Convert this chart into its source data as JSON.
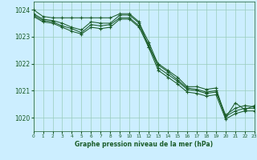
{
  "background_color": "#cceeff",
  "grid_color": "#99ccbb",
  "line_color": "#1a5c28",
  "xlabel": "Graphe pression niveau de la mer (hPa)",
  "xlim": [
    0,
    23
  ],
  "ylim": [
    1019.5,
    1024.3
  ],
  "yticks": [
    1020,
    1021,
    1022,
    1023,
    1024
  ],
  "xticks": [
    0,
    1,
    2,
    3,
    4,
    5,
    6,
    7,
    8,
    9,
    10,
    11,
    12,
    13,
    14,
    15,
    16,
    17,
    18,
    19,
    20,
    21,
    22,
    23
  ],
  "series": [
    [
      1024.0,
      1023.75,
      1023.7,
      1023.7,
      1023.7,
      1023.7,
      1023.7,
      1023.7,
      1023.7,
      1023.85,
      1023.85,
      1023.55,
      1022.6,
      1022.0,
      1021.75,
      1021.5,
      1021.15,
      1021.15,
      1021.05,
      1021.1,
      1020.0,
      1020.55,
      1020.3,
      1020.45
    ],
    [
      1023.85,
      1023.65,
      1023.6,
      1023.5,
      1023.35,
      1023.25,
      1023.55,
      1023.5,
      1023.5,
      1023.8,
      1023.8,
      1023.5,
      1022.8,
      1021.95,
      1021.7,
      1021.4,
      1021.1,
      1021.05,
      1020.95,
      1021.0,
      1020.1,
      1020.35,
      1020.45,
      1020.4
    ],
    [
      1023.8,
      1023.6,
      1023.55,
      1023.4,
      1023.3,
      1023.15,
      1023.45,
      1023.4,
      1023.45,
      1023.7,
      1023.7,
      1023.4,
      1022.7,
      1021.85,
      1021.6,
      1021.35,
      1021.05,
      1021.0,
      1020.9,
      1020.95,
      1020.05,
      1020.25,
      1020.35,
      1020.35
    ],
    [
      1023.75,
      1023.55,
      1023.5,
      1023.35,
      1023.2,
      1023.1,
      1023.35,
      1023.3,
      1023.35,
      1023.65,
      1023.65,
      1023.35,
      1022.6,
      1021.75,
      1021.5,
      1021.25,
      1020.95,
      1020.9,
      1020.8,
      1020.85,
      1019.95,
      1020.15,
      1020.25,
      1020.25
    ]
  ]
}
